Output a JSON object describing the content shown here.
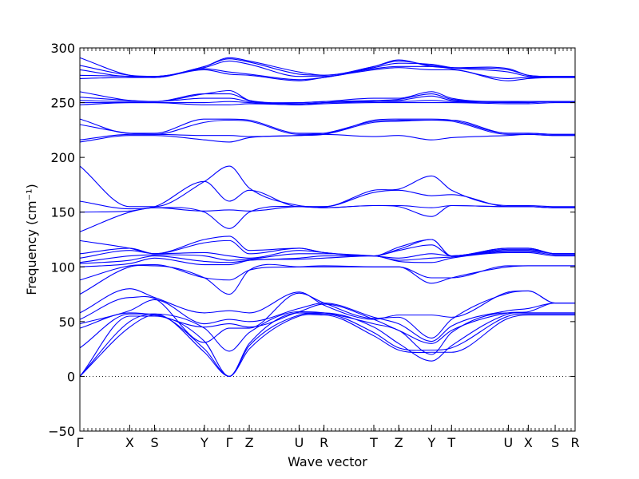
{
  "chart_data": {
    "type": "line",
    "xlabel": "Wave vector",
    "ylabel": "Frequency (cm⁻¹)",
    "ylim": [
      -50,
      300
    ],
    "yticks": [
      -50,
      0,
      50,
      100,
      150,
      200,
      250,
      300
    ],
    "grid": false,
    "zero_line": {
      "y": 0,
      "style": "dotted"
    },
    "line_color": "#0000ff",
    "x_points": [
      {
        "label": "Γ",
        "x": 0
      },
      {
        "label": "X",
        "x": 0.5
      },
      {
        "label": "S",
        "x": 0.75
      },
      {
        "label": "Y",
        "x": 1.25
      },
      {
        "label": "Γ",
        "x": 1.5
      },
      {
        "label": "Z",
        "x": 1.7
      },
      {
        "label": "U",
        "x": 2.2
      },
      {
        "label": "R",
        "x": 2.45
      },
      {
        "label": "T",
        "x": 2.95
      },
      {
        "label": "Z",
        "x": 3.2
      },
      {
        "label": "Y",
        "x": 3.53
      },
      {
        "label": "T",
        "x": 3.73
      },
      {
        "label": "U",
        "x": 4.3
      },
      {
        "label": "X",
        "x": 4.5
      },
      {
        "label": "S",
        "x": 4.77
      },
      {
        "label": "R",
        "x": 4.97
      }
    ],
    "series": [
      {
        "values": [
          0,
          45,
          56,
          25,
          0,
          25,
          55,
          56,
          37,
          24,
          22,
          22,
          53,
          56,
          56,
          56
        ]
      },
      {
        "values": [
          0,
          50,
          57,
          22,
          0,
          28,
          56,
          57,
          40,
          26,
          24,
          26,
          55,
          57,
          57,
          57
        ]
      },
      {
        "values": [
          0,
          55,
          55,
          32,
          0,
          30,
          58,
          58,
          45,
          30,
          14,
          28,
          57,
          58,
          58,
          58
        ]
      },
      {
        "values": [
          26,
          57,
          57,
          44,
          23,
          40,
          59,
          58,
          48,
          42,
          20,
          40,
          58,
          58,
          58,
          58
        ]
      },
      {
        "values": [
          44,
          58,
          56,
          45,
          48,
          45,
          59,
          66,
          52,
          42,
          30,
          42,
          58,
          59,
          67,
          67
        ]
      },
      {
        "values": [
          48,
          60,
          70,
          48,
          52,
          50,
          62,
          67,
          54,
          48,
          32,
          46,
          60,
          62,
          67,
          67
        ]
      },
      {
        "values": [
          52,
          72,
          71,
          31,
          44,
          44,
          76,
          67,
          53,
          54,
          35,
          52,
          76,
          78,
          67,
          67
        ]
      },
      {
        "values": [
          58,
          80,
          72,
          58,
          60,
          58,
          77,
          65,
          52,
          56,
          56,
          54,
          77,
          78,
          67,
          67
        ]
      },
      {
        "values": [
          75,
          100,
          101,
          90,
          75,
          97,
          100,
          100,
          100,
          100,
          85,
          90,
          100,
          101,
          101,
          101
        ]
      },
      {
        "values": [
          88,
          101,
          102,
          90,
          88,
          97,
          100,
          101,
          100,
          100,
          90,
          90,
          101,
          101,
          101,
          101
        ]
      },
      {
        "values": [
          100,
          103,
          108,
          102,
          102,
          106,
          107,
          108,
          110,
          105,
          104,
          108,
          113,
          113,
          110,
          110
        ]
      },
      {
        "values": [
          103,
          106,
          110,
          105,
          104,
          106,
          108,
          110,
          110,
          106,
          108,
          109,
          114,
          114,
          111,
          111
        ]
      },
      {
        "values": [
          104,
          110,
          111,
          110,
          106,
          107,
          112,
          112,
          110,
          108,
          112,
          110,
          115,
          115,
          112,
          112
        ]
      },
      {
        "values": [
          108,
          115,
          112,
          113,
          110,
          108,
          115,
          113,
          110,
          115,
          120,
          110,
          116,
          116,
          112,
          112
        ]
      },
      {
        "values": [
          112,
          117,
          112,
          122,
          124,
          112,
          117,
          113,
          110,
          116,
          125,
          110,
          117,
          117,
          112,
          112
        ]
      },
      {
        "values": [
          124,
          117,
          112,
          125,
          128,
          115,
          117,
          113,
          110,
          118,
          125,
          110,
          117,
          117,
          112,
          112
        ]
      },
      {
        "values": [
          132,
          150,
          154,
          150,
          135,
          150,
          155,
          154,
          156,
          155,
          146,
          156,
          155,
          155,
          154,
          154
        ]
      },
      {
        "values": [
          150,
          151,
          154,
          151,
          152,
          151,
          155,
          154,
          156,
          156,
          154,
          156,
          155,
          155,
          154,
          154
        ]
      },
      {
        "values": [
          160,
          153,
          155,
          178,
          160,
          170,
          155,
          155,
          168,
          170,
          165,
          166,
          155,
          155,
          154,
          154
        ]
      },
      {
        "values": [
          192,
          155,
          155,
          178,
          192,
          172,
          156,
          155,
          170,
          171,
          183,
          170,
          156,
          156,
          155,
          155
        ]
      },
      {
        "values": [
          214,
          220,
          220,
          216,
          214,
          218,
          220,
          221,
          219,
          220,
          216,
          218,
          220,
          221,
          220,
          220
        ]
      },
      {
        "values": [
          216,
          221,
          221,
          220,
          220,
          219,
          220,
          221,
          232,
          233,
          234,
          233,
          221,
          221,
          220,
          220
        ]
      },
      {
        "values": [
          230,
          222,
          221,
          232,
          234,
          233,
          221,
          222,
          233,
          234,
          234,
          234,
          222,
          222,
          221,
          221
        ]
      },
      {
        "values": [
          235,
          222,
          222,
          235,
          235,
          234,
          222,
          222,
          234,
          235,
          235,
          234,
          222,
          222,
          221,
          221
        ]
      },
      {
        "values": [
          248,
          250,
          250,
          248,
          248,
          249,
          248,
          249,
          250,
          250,
          250,
          250,
          249,
          249,
          250,
          250
        ]
      },
      {
        "values": [
          250,
          250,
          250,
          250,
          251,
          250,
          248,
          250,
          251,
          251,
          252,
          251,
          250,
          250,
          251,
          251
        ]
      },
      {
        "values": [
          252,
          251,
          251,
          254,
          254,
          251,
          249,
          250,
          251,
          252,
          256,
          252,
          251,
          250,
          251,
          251
        ]
      },
      {
        "values": [
          255,
          252,
          251,
          258,
          258,
          252,
          250,
          251,
          252,
          253,
          258,
          253,
          251,
          251,
          251,
          251
        ]
      },
      {
        "values": [
          260,
          252,
          251,
          258,
          261,
          252,
          250,
          251,
          254,
          254,
          260,
          254,
          251,
          251,
          251,
          251
        ]
      },
      {
        "values": [
          272,
          273,
          273,
          280,
          276,
          275,
          270,
          273,
          280,
          282,
          280,
          280,
          270,
          272,
          273,
          273
        ]
      },
      {
        "values": [
          275,
          274,
          273,
          281,
          278,
          276,
          271,
          273,
          281,
          283,
          283,
          281,
          272,
          273,
          273,
          273
        ]
      },
      {
        "values": [
          280,
          274,
          274,
          282,
          288,
          285,
          274,
          274,
          282,
          286,
          285,
          282,
          278,
          274,
          273,
          273
        ]
      },
      {
        "values": [
          284,
          275,
          274,
          283,
          290,
          287,
          276,
          275,
          283,
          288,
          284,
          282,
          280,
          275,
          274,
          274
        ]
      },
      {
        "values": [
          291,
          275,
          274,
          283,
          291,
          288,
          278,
          275,
          283,
          289,
          283,
          282,
          281,
          275,
          274,
          274
        ]
      }
    ]
  }
}
